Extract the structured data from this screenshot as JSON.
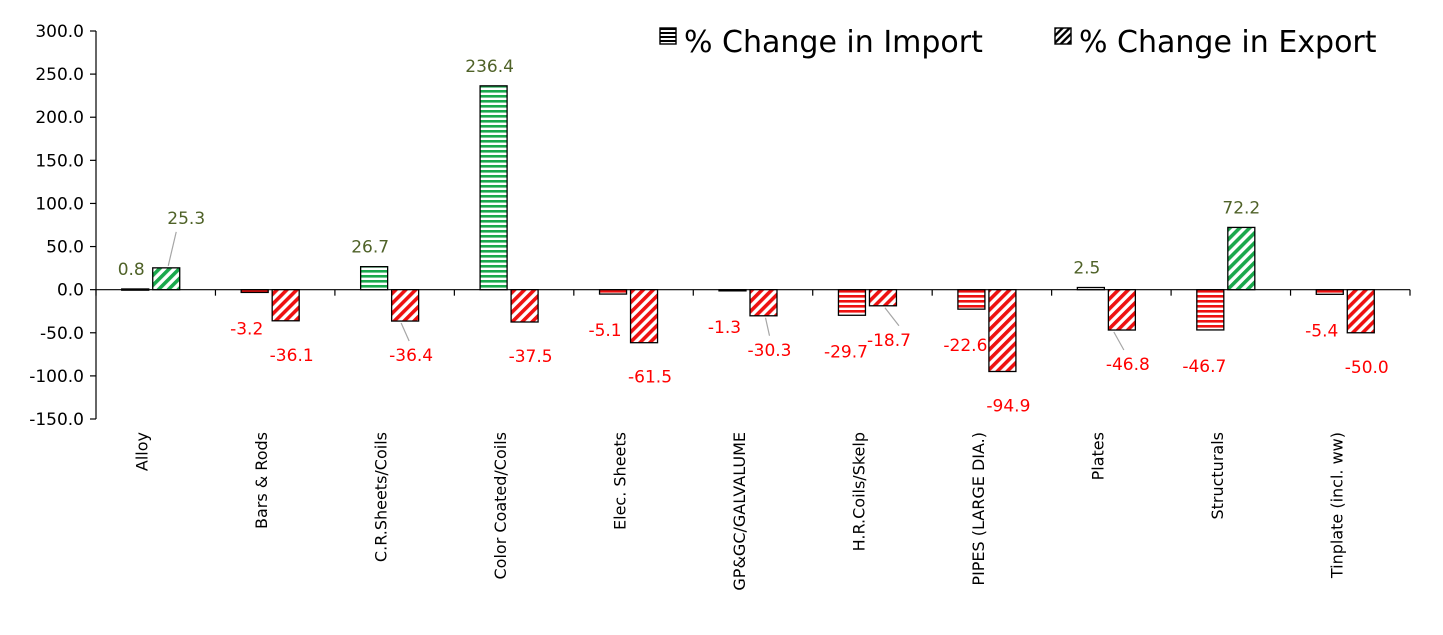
{
  "chart_data": {
    "type": "bar",
    "title": "",
    "xlabel": "",
    "ylabel": "",
    "ylim": [
      -150,
      300
    ],
    "yticks": [
      300,
      250,
      200,
      150,
      100,
      50,
      0,
      -50,
      -100,
      -150
    ],
    "ytick_labels": [
      "300.0",
      "250.0",
      "200.0",
      "150.0",
      "100.0",
      "50.0",
      "0.0",
      "-50.0",
      "-100.0",
      "-150.0"
    ],
    "categories": [
      "Alloy",
      "Bars & Rods",
      "C.R.Sheets/Coils",
      "Color Coated/Coils",
      "Elec. Sheets",
      "GP&GC/GALVALUME",
      "H.R.Coils/Skelp",
      "PIPES (LARGE DIA.)",
      "Plates",
      "Structurals",
      "Tinplate (incl. ww)"
    ],
    "series": [
      {
        "name": "% Change in Import",
        "values": [
          0.8,
          -3.2,
          26.7,
          236.4,
          -5.1,
          -1.3,
          -29.7,
          -22.6,
          2.5,
          -46.7,
          -5.4
        ],
        "labels": [
          "0.8",
          "-3.2",
          "26.7",
          "236.4",
          "-5.1",
          "-1.3",
          "-29.7",
          "-22.6",
          "2.5",
          "-46.7",
          "-5.4"
        ],
        "pattern": "horizontal-stripes"
      },
      {
        "name": "% Change in Export",
        "values": [
          25.3,
          -36.1,
          -36.4,
          -37.5,
          -61.5,
          -30.3,
          -18.7,
          -94.9,
          -46.8,
          72.2,
          -50.0
        ],
        "labels": [
          "25.3",
          "-36.1",
          "-36.4",
          "-37.5",
          "-61.5",
          "-30.3",
          "-18.7",
          "-94.9",
          "-46.8",
          "72.2",
          "-50.0"
        ],
        "pattern": "diagonal-stripes"
      }
    ],
    "legend_position": "top-right",
    "grid": false,
    "colors": {
      "positive_fill": "#1aa84c",
      "negative_fill": "#ee1111",
      "positive_label": "#4f6228",
      "negative_label": "#ff0000",
      "bar_outline": "#000000"
    }
  }
}
